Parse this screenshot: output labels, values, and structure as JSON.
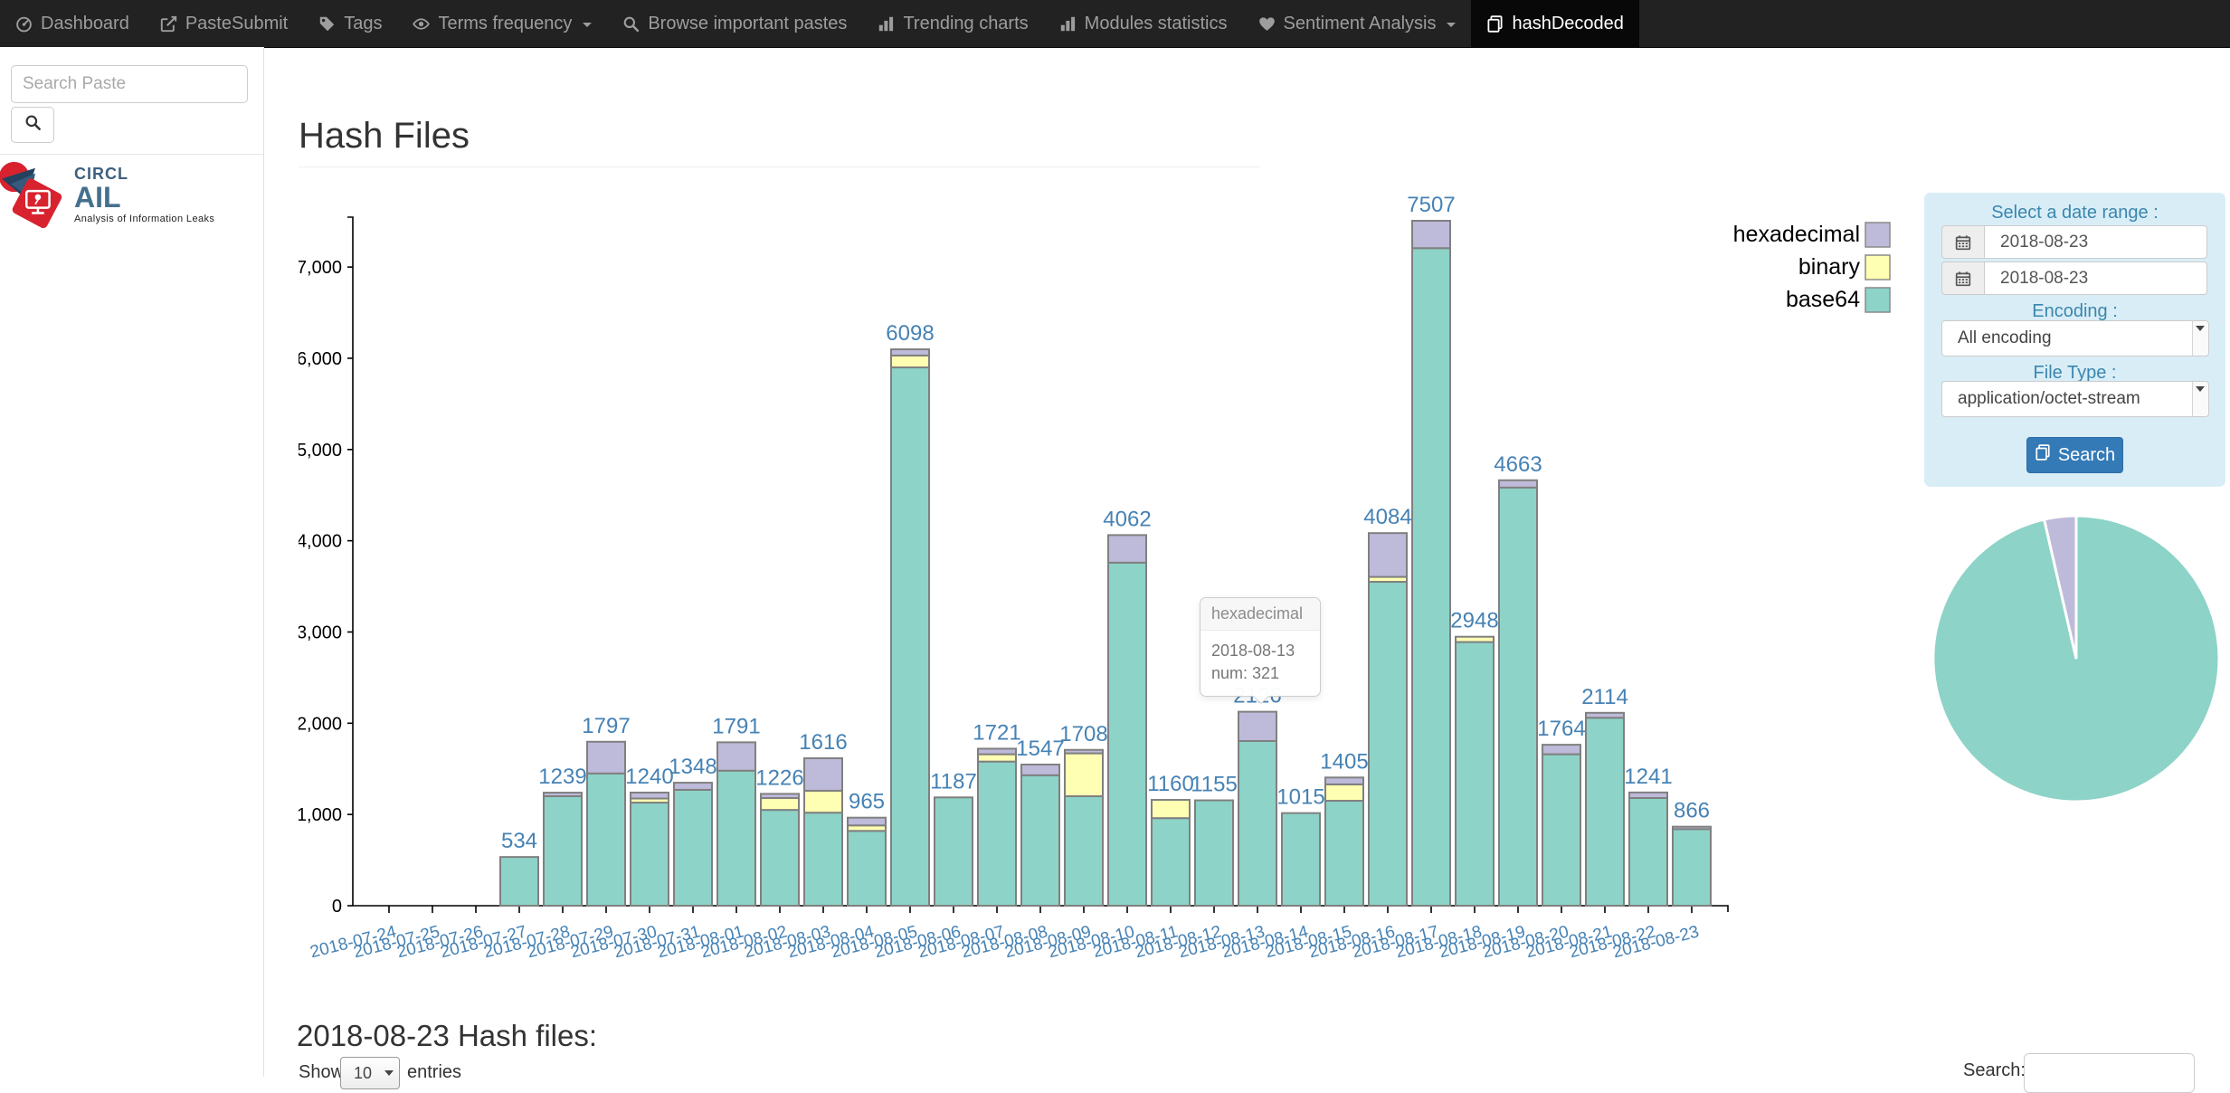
{
  "navbar": {
    "items": [
      {
        "label": "Dashboard",
        "icon": "dashboard-icon",
        "active": false,
        "caret": false
      },
      {
        "label": "PasteSubmit",
        "icon": "paste-submit-icon",
        "active": false,
        "caret": false
      },
      {
        "label": "Tags",
        "icon": "tag-icon",
        "active": false,
        "caret": false
      },
      {
        "label": "Terms frequency",
        "icon": "eye-icon",
        "active": false,
        "caret": true
      },
      {
        "label": "Browse important pastes",
        "icon": "search-icon",
        "active": false,
        "caret": false
      },
      {
        "label": "Trending charts",
        "icon": "bar-chart-icon",
        "active": false,
        "caret": false
      },
      {
        "label": "Modules statistics",
        "icon": "bar-chart-icon",
        "active": false,
        "caret": false
      },
      {
        "label": "Sentiment Analysis",
        "icon": "heart-icon",
        "active": false,
        "caret": true
      },
      {
        "label": "hashDecoded",
        "icon": "files-icon",
        "active": true,
        "caret": false
      }
    ]
  },
  "sidebar": {
    "search_placeholder": "Search Paste",
    "logo": {
      "brand": "CIRCL",
      "product": "AIL",
      "tagline": "Analysis of Information Leaks"
    }
  },
  "page": {
    "title": "Hash Files"
  },
  "theme": {
    "panel_bg": "#d9edf7",
    "accent_text": "#3a87ad",
    "button_bg": "#337ab7",
    "value_label_color": "#4682b4",
    "bar_stroke": "#808080"
  },
  "tooltip": {
    "title": "hexadecimal",
    "date": "2018-08-13",
    "num": "num: 321"
  },
  "filters": {
    "date_range_label": "Select a date range :",
    "date_from": "2018-08-23",
    "date_to": "2018-08-23",
    "encoding_label": "Encoding :",
    "encoding_value": "All encoding",
    "file_type_label": "File Type :",
    "file_type_value": "application/octet-stream",
    "search_button_label": "Search"
  },
  "table_section": {
    "heading": "2018-08-23 Hash files:",
    "show_label": "Show",
    "page_length": "10",
    "entries_label": "entries",
    "search_label": "Search:"
  },
  "chart_data": [
    {
      "type": "bar",
      "stacked": true,
      "title": "Hash Files",
      "x": [
        "2018-07-24",
        "2018-07-25",
        "2018-07-26",
        "2018-07-27",
        "2018-07-28",
        "2018-07-29",
        "2018-07-30",
        "2018-07-31",
        "2018-08-01",
        "2018-08-02",
        "2018-08-03",
        "2018-08-04",
        "2018-08-05",
        "2018-08-06",
        "2018-08-07",
        "2018-08-08",
        "2018-08-09",
        "2018-08-10",
        "2018-08-11",
        "2018-08-12",
        "2018-08-13",
        "2018-08-14",
        "2018-08-15",
        "2018-08-16",
        "2018-08-17",
        "2018-08-18",
        "2018-08-19",
        "2018-08-20",
        "2018-08-21",
        "2018-08-22",
        "2018-08-23"
      ],
      "series": [
        {
          "name": "base64",
          "color": "#8dd3c7",
          "values": [
            0,
            0,
            0,
            534,
            1200,
            1450,
            1130,
            1270,
            1480,
            1050,
            1020,
            820,
            5900,
            1187,
            1580,
            1430,
            1200,
            3760,
            960,
            1155,
            1805,
            1015,
            1150,
            3550,
            7207,
            2890,
            4583,
            1660,
            2060,
            1180,
            840
          ]
        },
        {
          "name": "binary",
          "color": "#ffffb3",
          "values": [
            0,
            0,
            0,
            0,
            0,
            0,
            45,
            0,
            0,
            130,
            240,
            60,
            130,
            0,
            80,
            0,
            470,
            0,
            200,
            0,
            0,
            0,
            180,
            54,
            0,
            58,
            0,
            0,
            0,
            0,
            0
          ]
        },
        {
          "name": "hexadecimal",
          "color": "#bebada",
          "values": [
            0,
            0,
            0,
            0,
            39,
            347,
            65,
            78,
            311,
            46,
            356,
            85,
            68,
            0,
            61,
            117,
            38,
            302,
            0,
            0,
            321,
            0,
            75,
            480,
            300,
            0,
            80,
            104,
            54,
            61,
            26
          ]
        }
      ],
      "totals": [
        0,
        0,
        0,
        534,
        1239,
        1797,
        1240,
        1348,
        1791,
        1226,
        1616,
        965,
        6098,
        1187,
        1721,
        1547,
        1708,
        4062,
        1160,
        1155,
        2126,
        1015,
        1405,
        4084,
        7507,
        2948,
        4663,
        1764,
        2114,
        1241,
        866
      ],
      "ylim": [
        0,
        7600
      ],
      "yticks": [
        0,
        1000,
        2000,
        3000,
        4000,
        5000,
        6000,
        7000
      ],
      "legend_order": [
        "hexadecimal",
        "binary",
        "base64"
      ],
      "legend_position": "top-right",
      "grid": false
    },
    {
      "type": "pie",
      "labels": [
        "base64",
        "hexadecimal"
      ],
      "values": [
        96.4,
        3.6
      ],
      "colors": [
        "#8dd3c7",
        "#bebada"
      ]
    }
  ]
}
